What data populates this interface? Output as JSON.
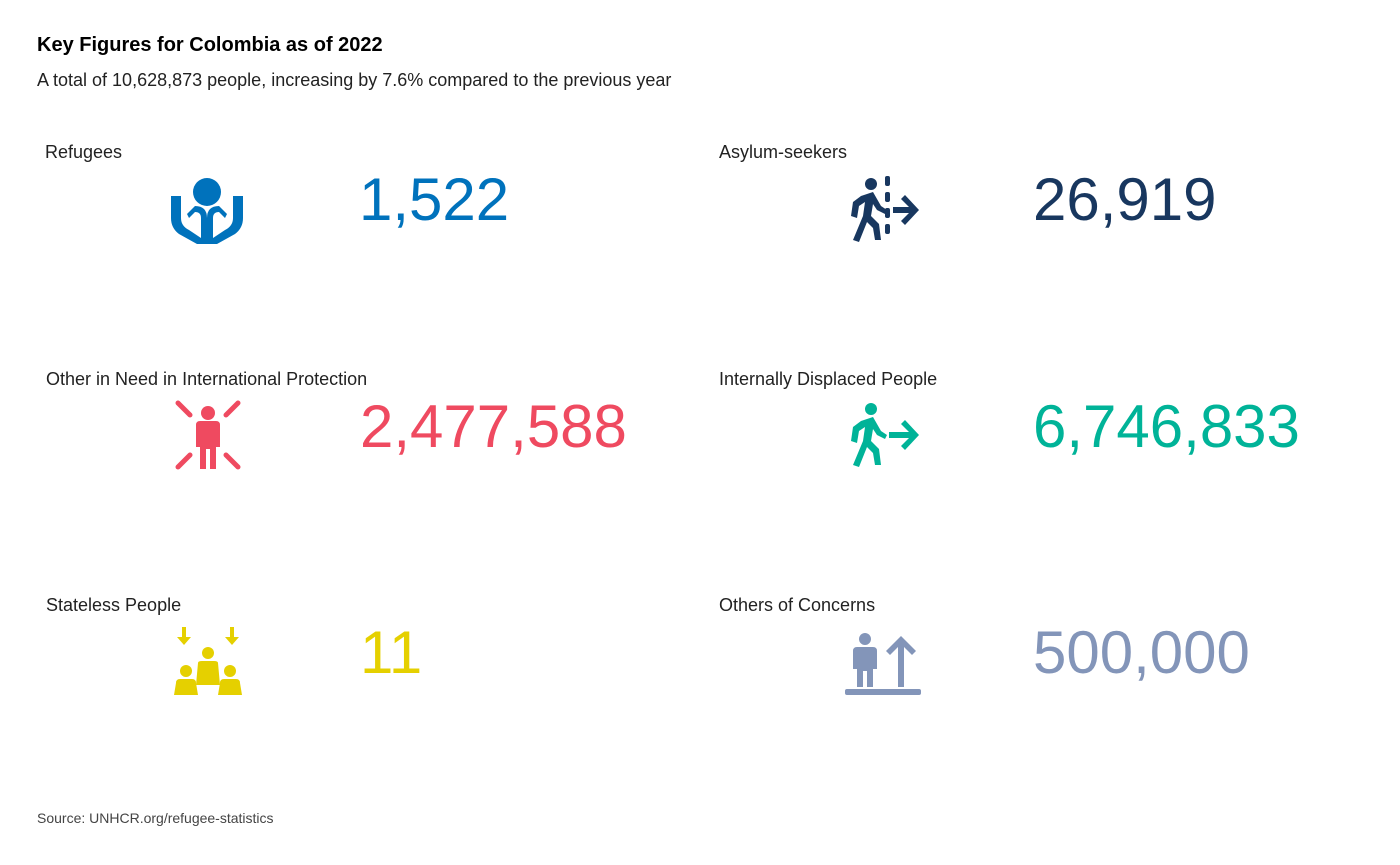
{
  "header": {
    "title": "Key Figures for Colombia as of 2022",
    "subtitle": "A total of 10,628,873 people, increasing by 7.6% compared to the previous year"
  },
  "figures": [
    {
      "label": "Refugees",
      "value": "1,522",
      "icon": "refugees-hands-icon",
      "color": "#0072bc"
    },
    {
      "label": "Asylum-seekers",
      "value": "26,919",
      "icon": "asylum-seeker-walking-icon",
      "color": "#18375f"
    },
    {
      "label": "Other in Need in International Protection",
      "value": "2,477,588",
      "icon": "person-in-need-icon",
      "color": "#ef4a60"
    },
    {
      "label": "Internally Displaced People",
      "value": "6,746,833",
      "icon": "displaced-person-walking-icon",
      "color": "#00b398"
    },
    {
      "label": "Stateless People",
      "value": "11",
      "icon": "stateless-people-icon",
      "color": "#e5d000"
    },
    {
      "label": "Others of Concerns",
      "value": "500,000",
      "icon": "others-of-concern-icon",
      "color": "#8395b9"
    }
  ],
  "footer": {
    "source": "Source: UNHCR.org/refugee-statistics"
  }
}
